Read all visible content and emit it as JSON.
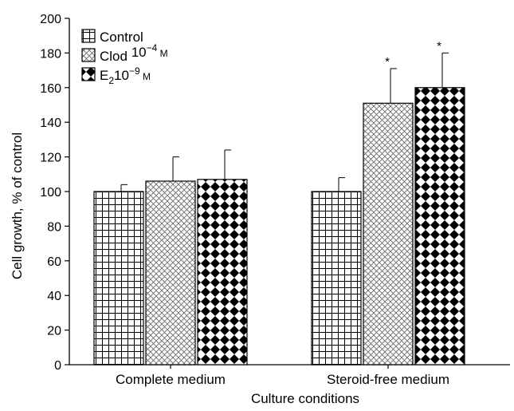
{
  "chart_data": {
    "type": "bar",
    "title": "",
    "xlabel": "Culture conditions",
    "ylabel": "Cell growth, % of control",
    "ylim": [
      0,
      200
    ],
    "yticks": [
      0,
      20,
      40,
      60,
      80,
      100,
      120,
      140,
      160,
      180,
      200
    ],
    "categories": [
      "Complete medium",
      "Steroid-free medium"
    ],
    "series": [
      {
        "name": "Control",
        "legend": {
          "main": "Control",
          "base": "",
          "sub": "",
          "mid": "",
          "sup": "",
          "unit": ""
        },
        "pattern": "grid",
        "values": [
          100,
          100
        ],
        "errors": [
          4,
          8
        ],
        "significance": [
          "",
          ""
        ]
      },
      {
        "name": "Clod 10−4 M",
        "legend": {
          "main": "",
          "base": "Clod",
          "sub": "",
          "mid": " 10",
          "sup": "−4",
          "unit": " M"
        },
        "pattern": "crosshatch",
        "values": [
          106,
          151
        ],
        "errors": [
          14,
          20
        ],
        "significance": [
          "",
          "*"
        ]
      },
      {
        "name": "E2 10−9 M",
        "legend": {
          "main": "",
          "base": "E",
          "sub": "2",
          "mid": "10",
          "sup": "−9",
          "unit": " M"
        },
        "pattern": "diamond",
        "values": [
          107,
          160
        ],
        "errors": [
          17,
          20
        ],
        "significance": [
          "",
          "*"
        ]
      }
    ],
    "grid": false,
    "legend_position": "top-left"
  }
}
